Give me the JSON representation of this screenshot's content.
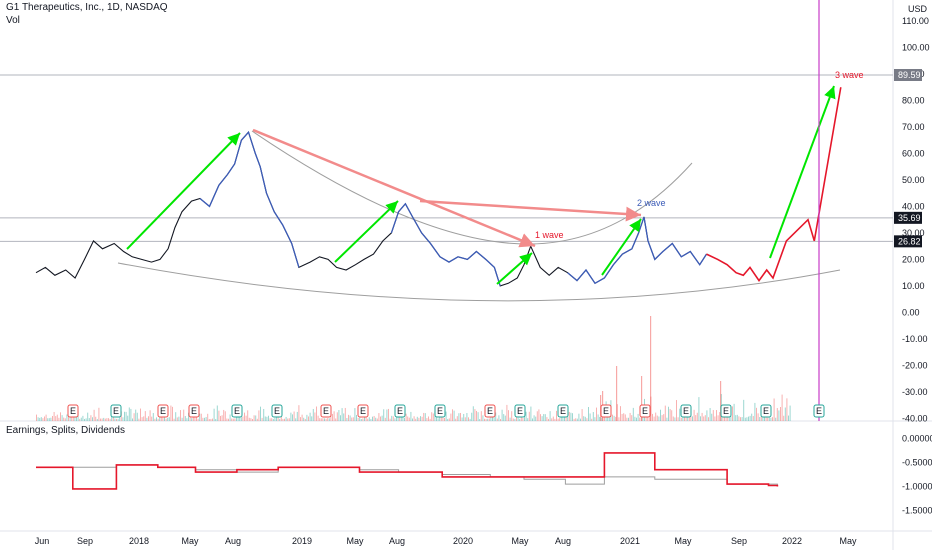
{
  "header": {
    "title": "G1 Therapeutics, Inc., 1D, NASDAQ",
    "volume_label": "Vol",
    "currency": "USD",
    "indicator_label": "Earnings, Splits, Dividends"
  },
  "colors": {
    "background": "#ffffff",
    "price_line": "#131722",
    "bullish_arrow": "#00e600",
    "bearish_arrow": "#f28b8b",
    "projection": "#e5172b",
    "highlight_line": "#3c5cb8",
    "curve": "#9e9e9e",
    "vertical_marker": "#c83cc8",
    "earnings_green": "#26a69a",
    "earnings_red": "#ef5350"
  },
  "chart_data": [
    {
      "type": "line",
      "series": [
        {
          "name": "price",
          "x": [
            "2017-05-20",
            "2017-06-10",
            "2017-07-01",
            "2017-07-25",
            "2017-08-15",
            "2017-09-05",
            "2017-09-25",
            "2017-10-15",
            "2017-11-10",
            "2017-12-01",
            "2017-12-20",
            "2018-01-10",
            "2018-02-01",
            "2018-02-20",
            "2018-03-10",
            "2018-03-25",
            "2018-04-10",
            "2018-05-01",
            "2018-05-20",
            "2018-06-10",
            "2018-07-01",
            "2018-07-20",
            "2018-08-05",
            "2018-08-20",
            "2018-09-05",
            "2018-09-20",
            "2018-10-01",
            "2018-10-15",
            "2018-11-01",
            "2018-11-20",
            "2018-12-10",
            "2018-12-26",
            "2019-01-20",
            "2019-02-10",
            "2019-03-01",
            "2019-03-20",
            "2019-04-10",
            "2019-05-01",
            "2019-05-20",
            "2019-06-10",
            "2019-07-01",
            "2019-07-20",
            "2019-08-05",
            "2019-08-20",
            "2019-09-05",
            "2019-09-25",
            "2019-10-15",
            "2019-11-05",
            "2019-11-25",
            "2019-12-15",
            "2020-01-05",
            "2020-01-25",
            "2020-02-15",
            "2020-03-05",
            "2020-03-18",
            "2020-04-05",
            "2020-04-25",
            "2020-05-10",
            "2020-05-25",
            "2020-06-15",
            "2020-07-05",
            "2020-07-25",
            "2020-08-15",
            "2020-09-05",
            "2020-09-25",
            "2020-10-15",
            "2020-11-05",
            "2020-11-25",
            "2020-12-15",
            "2021-01-05",
            "2021-01-20",
            "2021-02-01",
            "2021-02-10",
            "2021-02-25",
            "2021-03-15",
            "2021-04-05",
            "2021-04-25",
            "2021-05-15",
            "2021-06-05",
            "2021-06-20"
          ],
          "values": [
            15,
            17,
            14,
            16,
            13,
            20,
            27,
            24,
            26,
            23,
            21,
            20,
            19,
            20,
            24,
            32,
            38,
            42,
            43,
            40,
            48,
            52,
            56,
            65,
            68,
            60,
            55,
            45,
            38,
            33,
            26,
            17,
            19,
            21,
            20,
            17,
            16,
            18,
            20,
            22,
            27,
            30,
            38,
            41,
            36,
            30,
            26,
            21,
            19,
            21,
            20,
            23,
            20,
            17,
            10,
            11,
            13,
            18,
            25,
            17,
            14,
            17,
            15,
            12,
            16,
            11,
            13,
            18,
            22,
            24,
            30,
            36,
            27,
            20,
            23,
            26,
            21,
            23,
            18,
            22
          ]
        },
        {
          "name": "projection",
          "x": [
            "2021-06-20",
            "2021-07-15",
            "2021-08-05",
            "2021-08-25",
            "2021-09-10",
            "2021-09-25",
            "2021-10-15",
            "2021-11-01",
            "2021-11-15",
            "2021-12-15",
            "2022-02-01",
            "2022-02-15",
            "2022-04-15"
          ],
          "values": [
            22,
            20,
            18,
            15,
            14,
            17,
            12,
            16,
            13,
            27,
            35,
            27,
            85
          ]
        }
      ],
      "annotations": [
        "1 wave",
        "2 wave",
        "3 wave"
      ],
      "x_ticks": [
        "Jun",
        "Sep",
        "2018",
        "May",
        "Aug",
        "2019",
        "May",
        "Aug",
        "2020",
        "May",
        "Aug",
        "2021",
        "May",
        "Sep",
        "2022",
        "May"
      ],
      "y_ticks": [
        "110.00",
        "100.00",
        "90.00",
        "80.00",
        "70.00",
        "60.00",
        "50.00",
        "40.00",
        "30.00",
        "20.00",
        "10.00",
        "0.00",
        "-10.00",
        "-20.00",
        "-30.00",
        "-40.00"
      ],
      "price_tags": [
        "89.59",
        "35.69",
        "26.82"
      ],
      "horizontal_levels": [
        89.59,
        35.69,
        26.82
      ],
      "earnings_markers": [
        "E",
        "E",
        "E",
        "E",
        "E",
        "E",
        "E",
        "E",
        "E",
        "E",
        "E",
        "E",
        "E",
        "E",
        "E",
        "E",
        "E",
        "E",
        "E",
        "E",
        "E"
      ],
      "earnings_marker_colors": [
        "red",
        "green",
        "red",
        "red",
        "green",
        "green",
        "red",
        "red",
        "green",
        "green",
        "red",
        "green",
        "green",
        "red",
        "red",
        "green",
        "green",
        "green",
        "green",
        "green",
        "purple"
      ]
    },
    {
      "type": "line",
      "y_ticks": [
        "0.00000",
        "-0.50000",
        "-1.00000",
        "-1.50000"
      ],
      "series": [
        {
          "name": "estimate",
          "x": [
            "2017-05-20",
            "2017-08-10",
            "2017-11-15",
            "2018-02-15",
            "2018-05-10",
            "2018-08-10",
            "2018-11-10",
            "2019-02-20",
            "2019-05-10",
            "2019-08-05",
            "2019-11-10",
            "2020-02-25",
            "2020-05-10",
            "2020-08-10",
            "2020-11-05",
            "2021-02-25",
            "2021-05-05",
            "2021-08-05",
            "2021-11-05",
            "2021-11-25"
          ],
          "values": [
            -0.6,
            -0.6,
            -0.55,
            -0.6,
            -0.65,
            -0.7,
            -0.6,
            -0.6,
            -0.65,
            -0.7,
            -0.75,
            -0.8,
            -0.85,
            -0.95,
            -0.8,
            -0.85,
            -0.85,
            -0.95,
            -0.95,
            -1.0
          ]
        },
        {
          "name": "actual",
          "x": [
            "2017-05-20",
            "2017-08-10",
            "2017-11-15",
            "2018-02-15",
            "2018-05-10",
            "2018-08-10",
            "2018-11-10",
            "2019-02-20",
            "2019-05-10",
            "2019-08-05",
            "2019-11-10",
            "2020-02-25",
            "2020-05-10",
            "2020-08-10",
            "2020-11-05",
            "2021-02-25",
            "2021-05-05",
            "2021-08-05",
            "2021-11-05",
            "2021-11-25"
          ],
          "values": [
            -0.6,
            -1.05,
            -0.55,
            -0.6,
            -0.7,
            -0.65,
            -0.6,
            -0.6,
            -0.7,
            -0.7,
            -0.8,
            -0.8,
            -0.8,
            -0.8,
            -0.3,
            -0.65,
            -0.65,
            -0.95,
            -0.98,
            -1.0
          ]
        }
      ]
    }
  ]
}
